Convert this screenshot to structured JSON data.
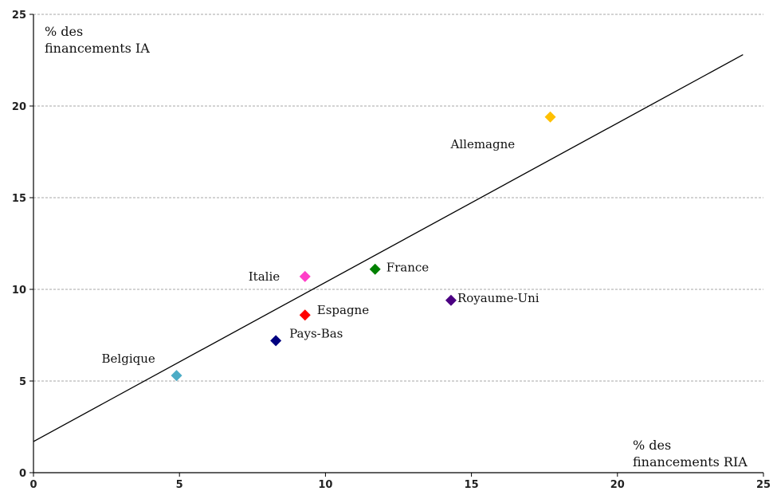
{
  "chart_data": {
    "type": "scatter",
    "ylabel_lines": [
      "% des",
      "financements IA"
    ],
    "xlabel_lines": [
      "% des",
      "financements RIA"
    ],
    "xlim": [
      0,
      25
    ],
    "ylim": [
      0,
      25
    ],
    "xticks": [
      0,
      5,
      10,
      15,
      20,
      25
    ],
    "yticks": [
      0,
      5,
      10,
      15,
      20,
      25
    ],
    "grid": "horizontal dashed",
    "points": [
      {
        "label": "Allemagne",
        "x": 17.7,
        "y": 19.4,
        "color": "#FFC000"
      },
      {
        "label": "France",
        "x": 11.7,
        "y": 11.1,
        "color": "#008000"
      },
      {
        "label": "Italie",
        "x": 9.3,
        "y": 10.7,
        "color": "#FF3EC8"
      },
      {
        "label": "Royaume-Uni",
        "x": 14.3,
        "y": 9.4,
        "color": "#4B0082"
      },
      {
        "label": "Espagne",
        "x": 9.3,
        "y": 8.6,
        "color": "#FF0000"
      },
      {
        "label": "Pays-Bas",
        "x": 8.3,
        "y": 7.2,
        "color": "#000080"
      },
      {
        "label": "Belgique",
        "x": 4.9,
        "y": 5.3,
        "color": "#4BACC6"
      }
    ],
    "trendline": {
      "x1": 0,
      "y1": 1.7,
      "x2": 24.3,
      "y2": 22.8,
      "color": "#000000"
    }
  }
}
